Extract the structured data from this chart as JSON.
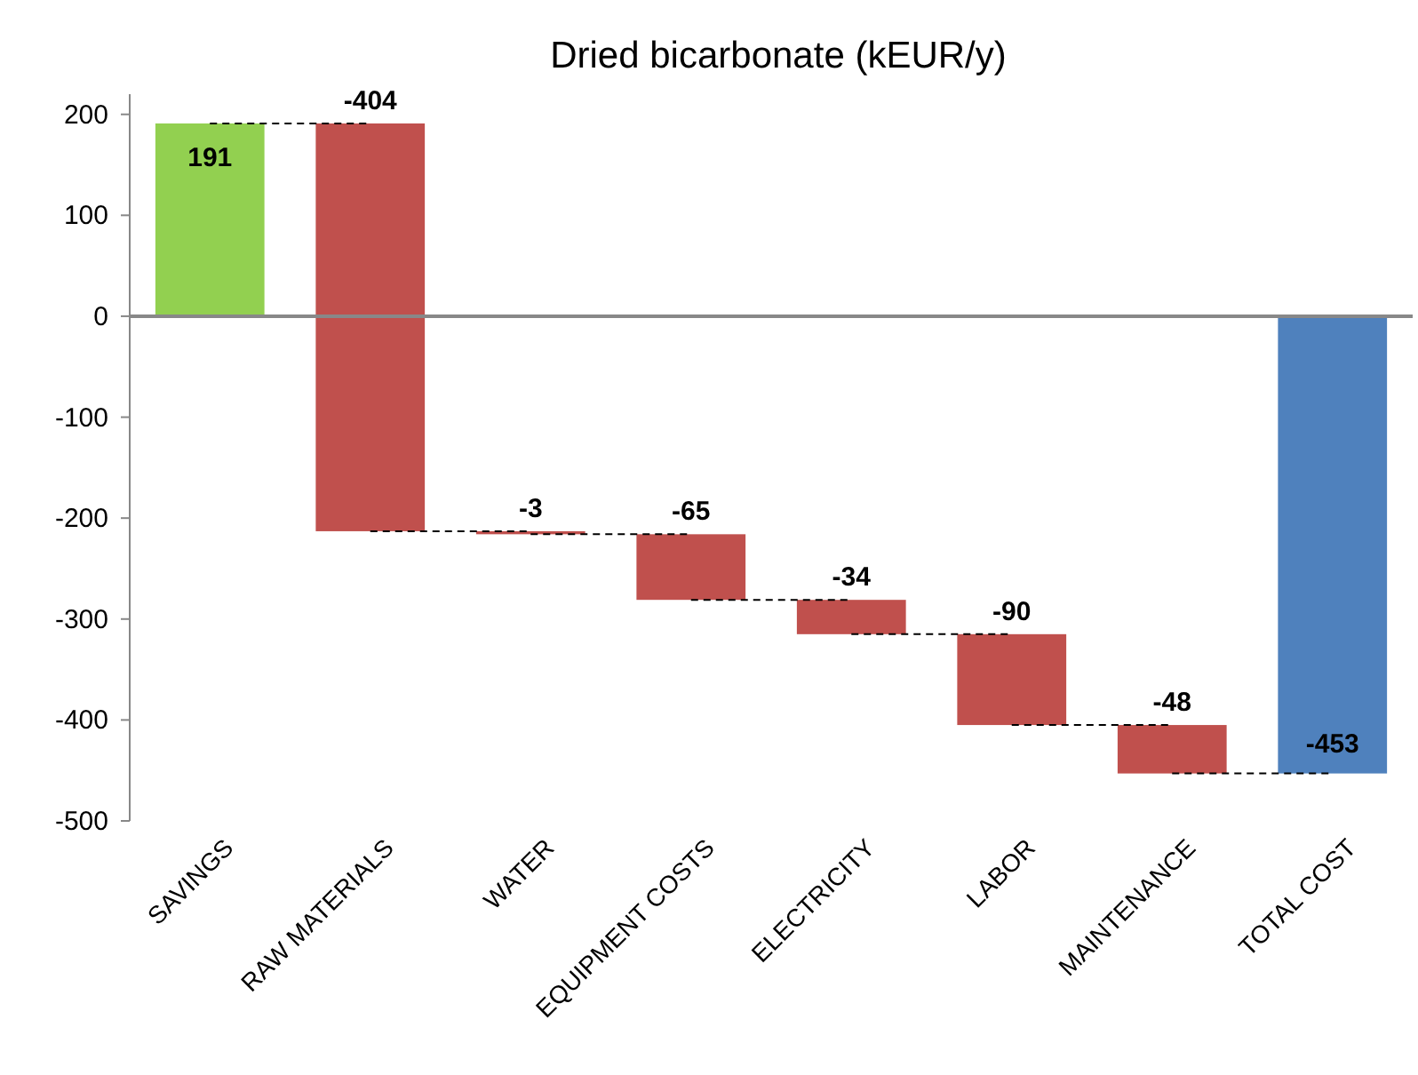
{
  "chart_data": {
    "type": "bar",
    "title": "Dried bicarbonate (kEUR/y)",
    "categories": [
      "SAVINGS",
      "RAW MATERIALS",
      "WATER",
      "EQUIPMENT COSTS",
      "ELECTRICITY",
      "LABOR",
      "MAINTENANCE",
      "TOTAL COST"
    ],
    "values": [
      191,
      -404,
      -3,
      -65,
      -34,
      -90,
      -48,
      -453
    ],
    "base": [
      0,
      191,
      -213,
      -216,
      -281,
      -315,
      -405,
      0
    ],
    "colors": [
      "#92d050",
      "#c0504d",
      "#c0504d",
      "#c0504d",
      "#c0504d",
      "#c0504d",
      "#c0504d",
      "#4f81bd"
    ],
    "ylim": [
      -500,
      220
    ],
    "yticks": [
      -500,
      -400,
      -300,
      -200,
      -100,
      0,
      100,
      200
    ],
    "data_labels": true
  }
}
